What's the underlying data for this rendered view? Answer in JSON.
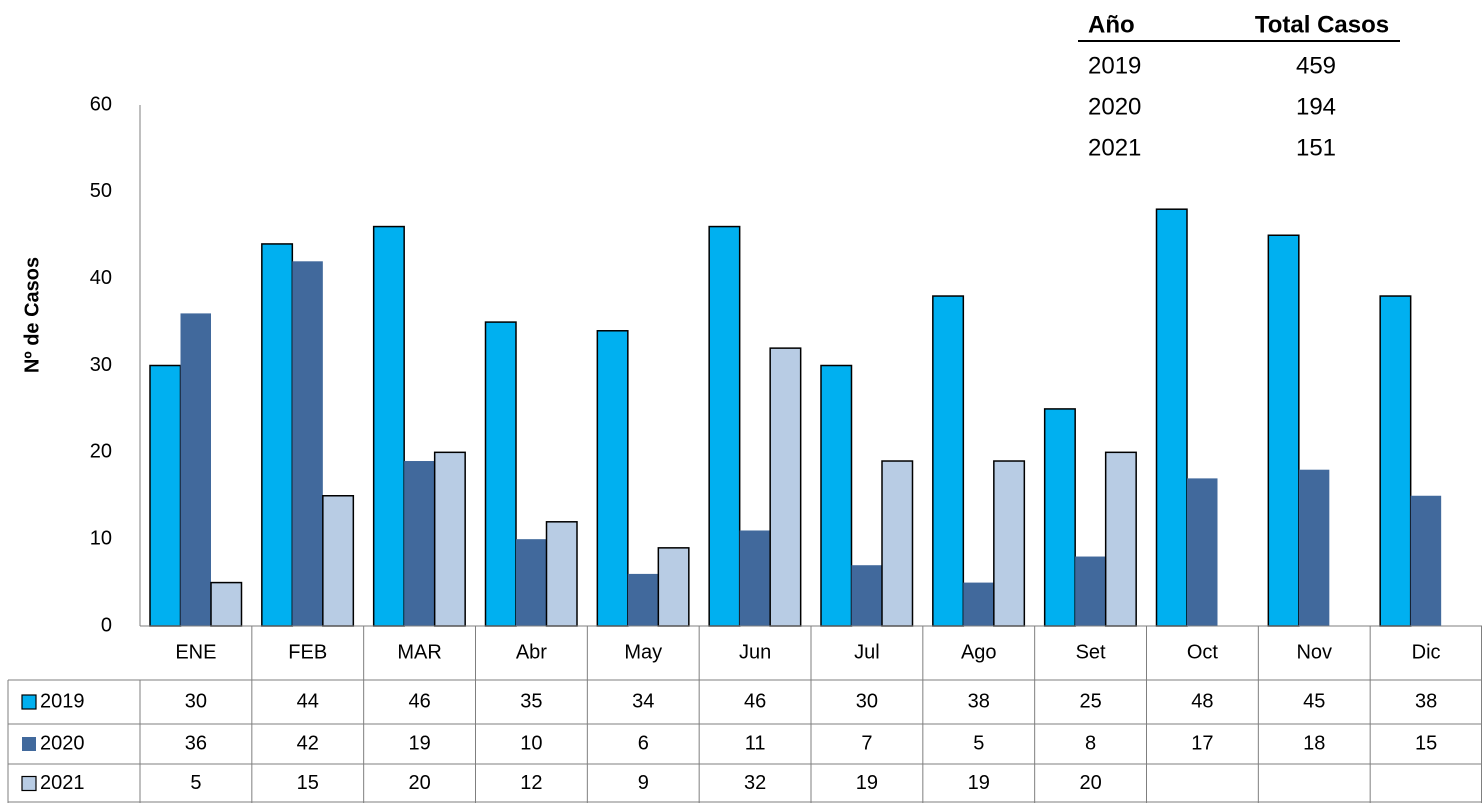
{
  "chart_data": {
    "type": "bar",
    "y_label": "Nº de Casos",
    "categories": [
      "ENE",
      "FEB",
      "MAR",
      "Abr",
      "May",
      "Jun",
      "Jul",
      "Ago",
      "Set",
      "Oct",
      "Nov",
      "Dic"
    ],
    "series": [
      {
        "name": "2019",
        "color": "#00b0f0",
        "outline": true,
        "values": [
          30,
          44,
          46,
          35,
          34,
          46,
          30,
          38,
          25,
          48,
          45,
          38
        ]
      },
      {
        "name": "2020",
        "color": "#41699c",
        "outline": false,
        "values": [
          36,
          42,
          19,
          10,
          6,
          11,
          7,
          5,
          8,
          17,
          18,
          15
        ]
      },
      {
        "name": "2021",
        "color": "#b8cce4",
        "outline": true,
        "values": [
          5,
          15,
          20,
          12,
          9,
          32,
          19,
          19,
          20,
          null,
          null,
          null
        ]
      }
    ],
    "ylim": [
      0,
      60
    ],
    "yticks": [
      0,
      10,
      20,
      30,
      40,
      50,
      60
    ],
    "grid": false,
    "data_table": true
  },
  "summary_table": {
    "headers": [
      "Año",
      "Total Casos"
    ],
    "rows": [
      [
        "2019",
        "459"
      ],
      [
        "2020",
        "194"
      ],
      [
        "2021",
        "151"
      ]
    ]
  }
}
